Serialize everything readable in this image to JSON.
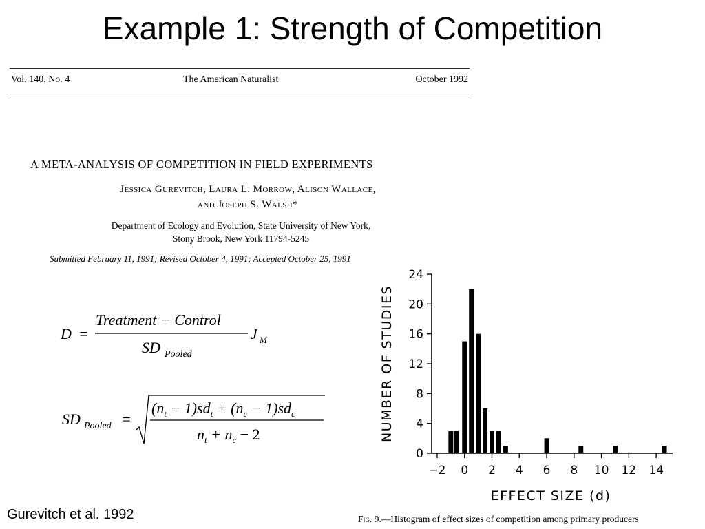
{
  "slide": {
    "title": "Example 1: Strength of Competition",
    "citation": "Gurevitch et al. 1992"
  },
  "journal_header": {
    "volume": "Vol. 140, No. 4",
    "journal": "The American Naturalist",
    "date": "October 1992"
  },
  "paper": {
    "title": "A META-ANALYSIS OF COMPETITION IN FIELD EXPERIMENTS",
    "authors_line1": "Jessica Gurevitch, Laura L. Morrow, Alison Wallace,",
    "authors_line2": "and Joseph S. Walsh*",
    "affiliation_line1": "Department of Ecology and Evolution, State University of New York,",
    "affiliation_line2": "Stony Brook, New York 11794-5245",
    "dates": "Submitted February 11, 1991; Revised October 4, 1991; Accepted October 25, 1991"
  },
  "formula1": {
    "lhs": "D",
    "equals": "=",
    "numerator": "Treatment − Control",
    "denominator_main": "SD",
    "denominator_sub": "Pooled",
    "factor_main": "J",
    "factor_sub": "M"
  },
  "formula2": {
    "lhs_main": "SD",
    "lhs_sub": "Pooled",
    "equals": "=",
    "num_a": "(n",
    "num_a_sub": "t",
    "num_b": " − 1)sd",
    "num_b_sub": "t",
    "num_c": " + (n",
    "num_c_sub": "c",
    "num_d": " − 1)sd",
    "num_d_sub": "c",
    "den_a": "n",
    "den_a_sub": "t",
    "den_b": " + n",
    "den_b_sub": "c",
    "den_c": " − 2"
  },
  "figure_caption": {
    "label": "Fig. 9.",
    "text": "—Histogram of effect sizes of competition among primary producers"
  },
  "chart_data": {
    "type": "bar",
    "title": "",
    "xlabel": "EFFECT SIZE (d)",
    "ylabel": "NUMBER OF STUDIES",
    "xlim": [
      -2.4,
      15.2
    ],
    "ylim": [
      0,
      24
    ],
    "xticks": [
      -2,
      0,
      2,
      4,
      6,
      8,
      10,
      12,
      14
    ],
    "yticks": [
      0,
      4,
      8,
      12,
      16,
      20,
      24
    ],
    "grid": false,
    "bin_width": 0.4,
    "bars": [
      {
        "x": -1.0,
        "value": 3
      },
      {
        "x": -0.6,
        "value": 3
      },
      {
        "x": 0.0,
        "value": 15
      },
      {
        "x": 0.5,
        "value": 22
      },
      {
        "x": 1.0,
        "value": 16
      },
      {
        "x": 1.5,
        "value": 6
      },
      {
        "x": 2.0,
        "value": 3
      },
      {
        "x": 2.5,
        "value": 3
      },
      {
        "x": 3.0,
        "value": 1
      },
      {
        "x": 6.0,
        "value": 2
      },
      {
        "x": 8.5,
        "value": 1
      },
      {
        "x": 11.0,
        "value": 1
      },
      {
        "x": 14.6,
        "value": 1
      }
    ]
  }
}
